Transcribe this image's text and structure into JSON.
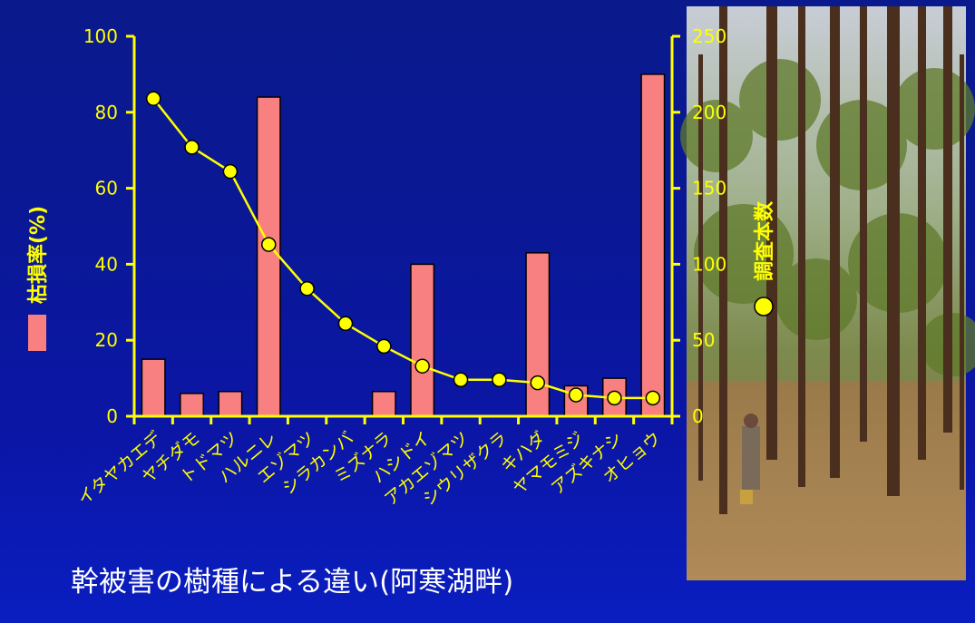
{
  "caption": "幹被害の樹種による違い(阿寒湖畔)",
  "photo": {
    "subject": "forest"
  },
  "colors": {
    "bars": "#f98080",
    "line": "#ffff00",
    "axis": "#ffff00",
    "background": "#0a1896"
  },
  "chart_data": {
    "type": "bar",
    "categories": [
      "イタヤカエデ",
      "ヤチダモ",
      "トドマツ",
      "ハルニレ",
      "エゾマツ",
      "シラカンバ",
      "ミズナラ",
      "ハシドイ",
      "アカエゾマツ",
      "シウリザクラ",
      "キハダ",
      "ヤマモミジ",
      "アズキナシ",
      "オヒョウ"
    ],
    "series": [
      {
        "name": "枯損率(%)",
        "type": "bar",
        "axis": "left",
        "values": [
          15,
          6,
          6.5,
          84,
          0,
          0,
          6.5,
          40,
          0,
          0,
          43,
          8,
          10,
          90
        ]
      },
      {
        "name": "調査本数",
        "type": "line",
        "axis": "right",
        "marker": "circle",
        "values": [
          209,
          177,
          161,
          113,
          84,
          61,
          46,
          33,
          24,
          24,
          22,
          14,
          12,
          12
        ]
      }
    ],
    "ylabel": "枯損率(%)",
    "ylabel_right": "調査本数",
    "ylim": [
      0,
      100
    ],
    "ylim_right": [
      0,
      250
    ],
    "yticks": [
      "0",
      "20",
      "40",
      "60",
      "80",
      "100"
    ],
    "yticks_right": [
      "0",
      "50",
      "100",
      "150",
      "200",
      "250"
    ],
    "grid": false
  }
}
